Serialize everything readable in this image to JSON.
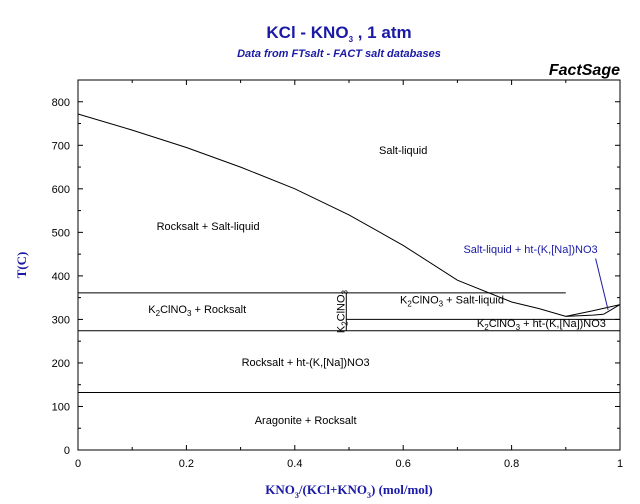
{
  "header": {
    "title": "KCl - KNO",
    "title_sub": "3",
    "title_tail": " , 1 atm",
    "subtitle": "Data from FTsalt - FACT salt databases",
    "brand": "FactSage"
  },
  "chart_data": {
    "type": "line",
    "title": "KCl - KNO3 , 1 atm",
    "subtitle": "Data from FTsalt - FACT salt databases",
    "xlabel": "KNO3/(KCl+KNO3) (mol/mol)",
    "ylabel": "T(C)",
    "xlim": [
      0,
      1
    ],
    "ylim": [
      0,
      850
    ],
    "x_ticks": [
      0,
      0.2,
      0.4,
      0.6,
      0.8,
      1
    ],
    "x_tick_labels": [
      "0",
      "0.2",
      "0.4",
      "0.6",
      "0.8",
      "1"
    ],
    "y_ticks": [
      0,
      100,
      200,
      300,
      400,
      500,
      600,
      700,
      800
    ],
    "y_tick_labels": [
      "0",
      "100",
      "200",
      "300",
      "400",
      "500",
      "600",
      "700",
      "800"
    ],
    "grid": false,
    "series": [
      {
        "id": "liquidus-rocksalt",
        "x": [
          0,
          0.1,
          0.2,
          0.3,
          0.4,
          0.5,
          0.6,
          0.7,
          0.8,
          0.85,
          0.9
        ],
        "y": [
          772,
          735,
          695,
          650,
          600,
          540,
          470,
          390,
          340,
          325,
          307
        ]
      },
      {
        "id": "liquidus-nitrate",
        "x": [
          0.9,
          0.95,
          1
        ],
        "y": [
          307,
          320,
          334
        ]
      },
      {
        "id": "ht-nitrate-liquidus",
        "x": [
          0.9,
          0.95,
          0.97
        ],
        "y": [
          307,
          310,
          312
        ]
      },
      {
        "id": "ht-nitrate-solidus",
        "x": [
          0.97,
          1
        ],
        "y": [
          312,
          334
        ]
      },
      {
        "id": "upper-isotherm",
        "x": [
          0,
          0.9
        ],
        "y": [
          361,
          361
        ]
      },
      {
        "id": "eutectic-isotherm",
        "x": [
          0.495,
          1
        ],
        "y": [
          300,
          300
        ]
      },
      {
        "id": "lower-isotherm",
        "x": [
          0,
          1
        ],
        "y": [
          274,
          274
        ]
      },
      {
        "id": "aragonite-isotherm",
        "x": [
          0,
          1
        ],
        "y": [
          132,
          132
        ]
      },
      {
        "id": "compound-line",
        "x": [
          0.495,
          0.495
        ],
        "y": [
          274,
          361
        ]
      }
    ],
    "regions": [
      {
        "label": "Salt-liquid",
        "x": 0.6,
        "y": 680,
        "color": "#000000"
      },
      {
        "label": "Rocksalt + Salt-liquid",
        "x": 0.24,
        "y": 505,
        "color": "#000000"
      },
      {
        "label": "Salt-liquid + ht-(K,[Na])NO3",
        "x": 0.835,
        "y": 452,
        "color": "#1a1aa6"
      },
      {
        "label_main": "K",
        "label_sub": "2",
        "label_tail": "ClNO",
        "label_sub2": "3",
        "label_end": " + Rocksalt",
        "x": 0.22,
        "y": 315,
        "color": "#000000"
      },
      {
        "label_main": "K",
        "label_sub": "2",
        "label_tail": "ClNO",
        "label_sub2": "3",
        "label_end": " + Salt-liquid",
        "x": 0.69,
        "y": 337,
        "color": "#000000"
      },
      {
        "label_main": "K",
        "label_sub": "2",
        "label_tail": "ClNO",
        "label_sub2": "3",
        "label_end": " + ht-(K,[Na])NO3",
        "x": 0.855,
        "y": 283,
        "color": "#000000"
      },
      {
        "label": "Rocksalt + ht-(K,[Na])NO3",
        "x": 0.42,
        "y": 193,
        "color": "#000000"
      },
      {
        "label": "Aragonite + Rocksalt",
        "x": 0.42,
        "y": 60,
        "color": "#000000"
      }
    ],
    "compound_label": {
      "main": "K",
      "sub": "2",
      "tail": "ClNO",
      "sub2": "3",
      "x": 0.495,
      "y": 318
    }
  }
}
